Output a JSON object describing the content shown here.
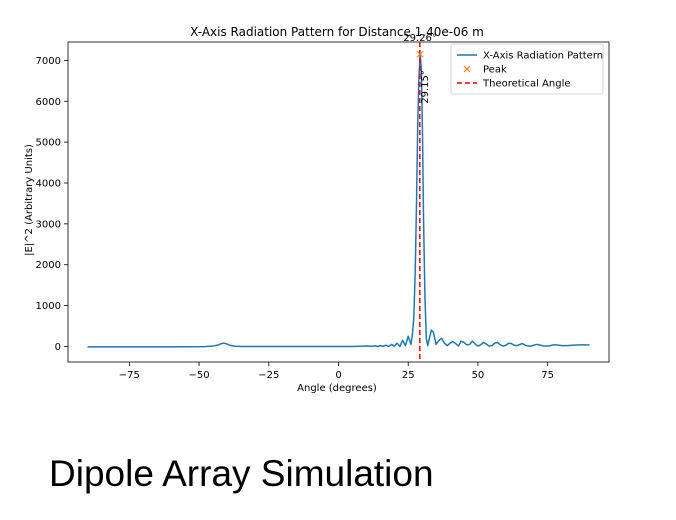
{
  "caption": "Dipole Array Simulation",
  "chart_data": {
    "type": "line",
    "title": "X-Axis Radiation Pattern for Distance 1.40e-06 m",
    "xlabel": "Angle (degrees)",
    "ylabel": "|E|^2 (Arbitrary Units)",
    "xlim": [
      -97,
      97
    ],
    "ylim": [
      -380,
      7450
    ],
    "x_ticks": [
      -75,
      -50,
      -25,
      0,
      25,
      50,
      75
    ],
    "y_ticks": [
      0,
      1000,
      2000,
      3000,
      4000,
      5000,
      6000,
      7000
    ],
    "grid": false,
    "legend_position": "top-right",
    "series": [
      {
        "name": "X-Axis Radiation Pattern",
        "color": "#1f77b4",
        "x": [
          -90,
          -60,
          -48,
          -45,
          -43,
          -42,
          -41,
          -40,
          -39,
          -37,
          -35,
          -30,
          -20,
          -10,
          0,
          5,
          10,
          12,
          13,
          14,
          15,
          16,
          17,
          18,
          19,
          20,
          21,
          22,
          23,
          24,
          25,
          26,
          26.5,
          27,
          27.5,
          28,
          28.4,
          28.8,
          29.26,
          29.7,
          30.1,
          30.5,
          31,
          31.5,
          32,
          32.6,
          33.3,
          34,
          35,
          36,
          37,
          38,
          39,
          40,
          41,
          42,
          43,
          44,
          45,
          46,
          47,
          48,
          49,
          50,
          51,
          52,
          53,
          54,
          55,
          56,
          57,
          58,
          59,
          60,
          61,
          62,
          63,
          64,
          65,
          66,
          67,
          68,
          69,
          70,
          71,
          72,
          73,
          74,
          75,
          76,
          77,
          78,
          79,
          80,
          82,
          84,
          86,
          88,
          90
        ],
        "y": [
          -10,
          -10,
          -5,
          10,
          40,
          70,
          80,
          60,
          30,
          5,
          0,
          0,
          0,
          0,
          0,
          0,
          10,
          5,
          15,
          0,
          20,
          5,
          30,
          0,
          50,
          10,
          80,
          0,
          150,
          20,
          250,
          50,
          300,
          700,
          1800,
          3600,
          5400,
          6500,
          7150,
          6800,
          5300,
          3100,
          1200,
          200,
          20,
          200,
          400,
          350,
          50,
          150,
          200,
          80,
          20,
          80,
          120,
          70,
          10,
          130,
          100,
          40,
          50,
          130,
          60,
          10,
          40,
          100,
          60,
          10,
          20,
          80,
          100,
          40,
          10,
          30,
          80,
          70,
          30,
          20,
          50,
          70,
          30,
          10,
          10,
          30,
          50,
          40,
          20,
          10,
          10,
          20,
          40,
          40,
          30,
          20,
          20,
          30,
          40,
          40,
          40
        ]
      },
      {
        "name": "Peak",
        "type": "scatter",
        "marker": "x",
        "color": "#ff7f0e",
        "x": [
          29.26
        ],
        "y": [
          7150
        ]
      },
      {
        "name": "Theoretical Angle",
        "type": "vline",
        "style": "dashed",
        "color": "#ff0000",
        "x": [
          29.15
        ]
      }
    ],
    "annotations": [
      {
        "text": "29.26°",
        "x": 29.26,
        "y": 7150,
        "kind": "peak-label"
      },
      {
        "text": "29.15°",
        "x": 29.15,
        "y": 6350,
        "kind": "theory-label"
      }
    ]
  }
}
